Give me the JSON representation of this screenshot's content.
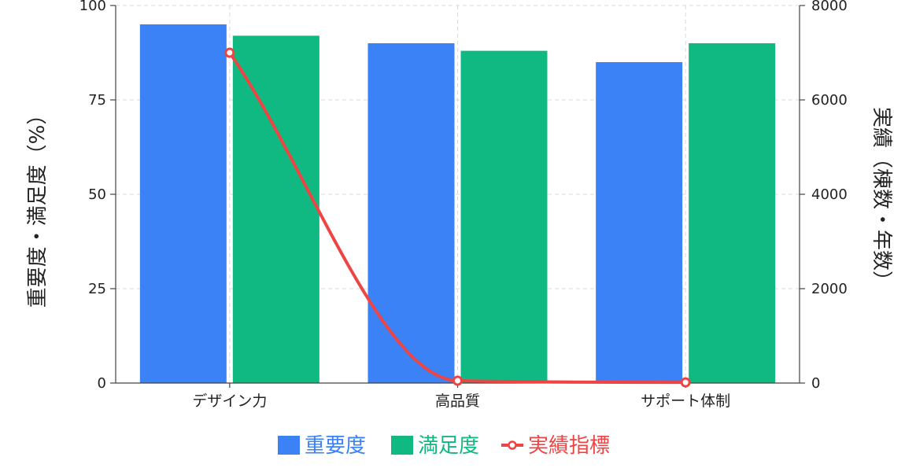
{
  "chart_data": {
    "type": "bar",
    "categories": [
      "デザイン力",
      "高品質",
      "サポート体制"
    ],
    "series": [
      {
        "name": "重要度",
        "kind": "bar",
        "axis": "left",
        "color": "#3b82f6",
        "values": [
          95,
          90,
          85
        ]
      },
      {
        "name": "満足度",
        "kind": "bar",
        "axis": "left",
        "color": "#10b981",
        "values": [
          92,
          88,
          90
        ]
      },
      {
        "name": "実績指標",
        "kind": "line",
        "axis": "right",
        "color": "#ef4444",
        "values": [
          7000,
          50,
          15
        ]
      }
    ],
    "ylabel": "重要度・満足度（%）",
    "y2label": "実績（棟数・年数）",
    "ylim": [
      0,
      100
    ],
    "y2lim": [
      0,
      8000
    ],
    "yticks": [
      "0",
      "25",
      "50",
      "75",
      "100"
    ],
    "y2ticks": [
      "0",
      "2000",
      "4000",
      "6000",
      "8000"
    ],
    "grid": true,
    "legend_position": "bottom"
  }
}
